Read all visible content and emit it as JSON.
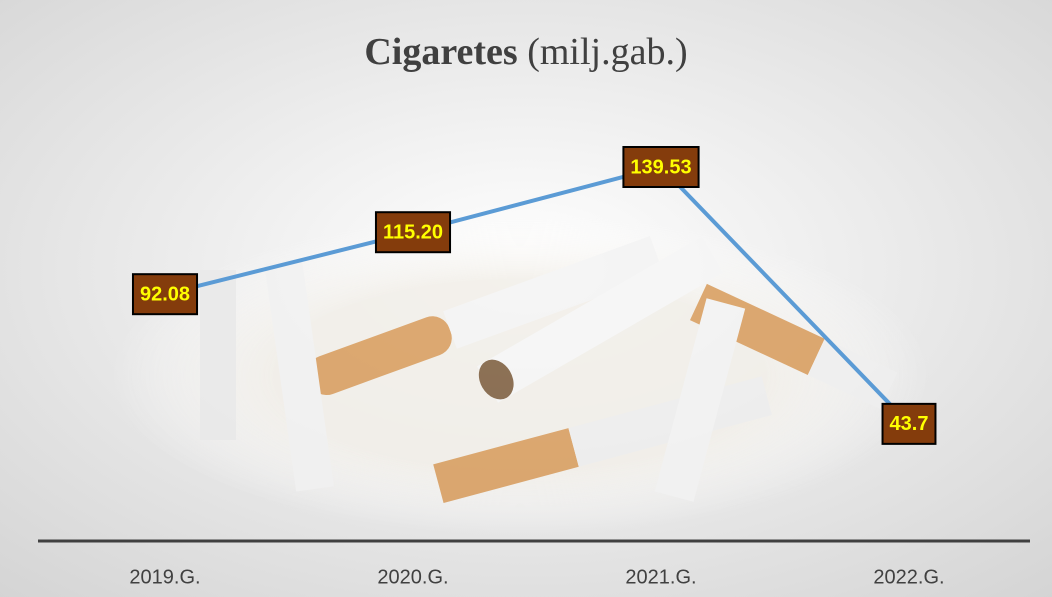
{
  "chart_data": {
    "type": "line",
    "title": "Cigaretes",
    "subtitle": "(milj.gab.)",
    "categories": [
      "2019.G.",
      "2020.G.",
      "2021.G.",
      "2022.G."
    ],
    "series": [
      {
        "color": "#5b9bd5",
        "values": [
          92.08,
          115.2,
          139.53,
          43.7
        ],
        "value_labels": [
          "92.08",
          "115.20",
          "139.53",
          "43.7"
        ]
      }
    ]
  }
}
